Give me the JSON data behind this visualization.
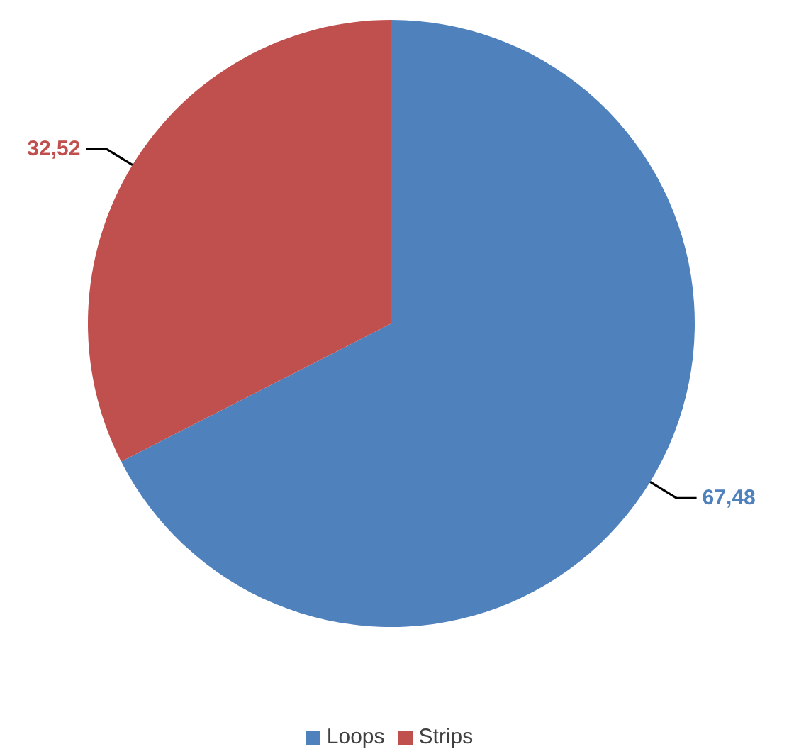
{
  "chart_data": {
    "type": "pie",
    "categories": [
      "Loops",
      "Strips"
    ],
    "values": [
      67.48,
      32.52
    ],
    "colors": [
      "#4f81bd",
      "#c0504d"
    ],
    "value_labels": [
      "67,48",
      "32,52"
    ],
    "legend": "bottom"
  }
}
